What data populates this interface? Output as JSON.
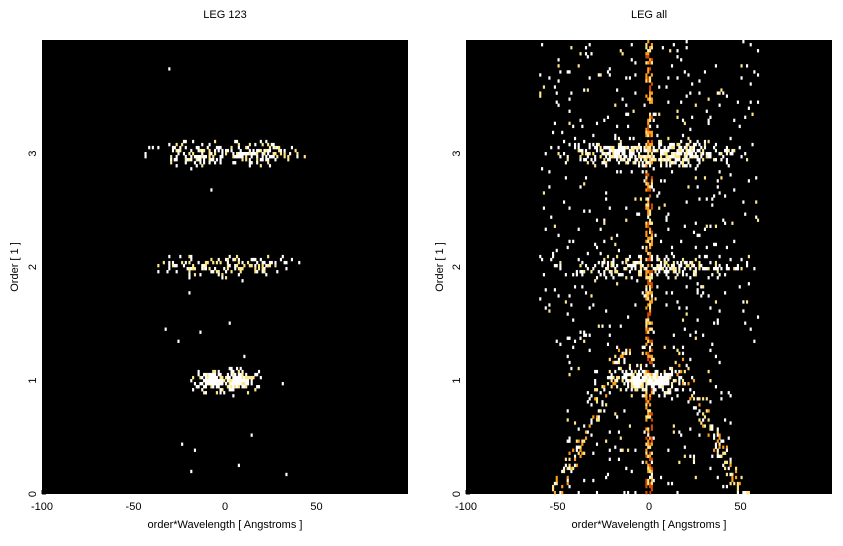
{
  "chart_data": [
    {
      "type": "heatmap",
      "title": "LEG 123",
      "xlabel": "order*Wavelength [ Angstroms ]",
      "ylabel": "Order [ 1 ]",
      "xlim": [
        -100,
        100
      ],
      "ylim": [
        0,
        4
      ],
      "xticks": [
        -100,
        -50,
        0,
        50
      ],
      "yticks": [
        0,
        1,
        2,
        3
      ],
      "background": "#000000",
      "colormap": [
        "#2a0000",
        "#7a1000",
        "#d04a00",
        "#ff9f1a",
        "#ffe88a",
        "#ffffff"
      ],
      "features": [
        {
          "order": 1.0,
          "center": -7,
          "width": 6,
          "intensity": 1.0
        },
        {
          "order": 1.0,
          "center": 7,
          "width": 6,
          "intensity": 1.0
        },
        {
          "order": 2.0,
          "center": -12,
          "width": 14,
          "intensity": 0.35
        },
        {
          "order": 2.0,
          "center": 16,
          "width": 14,
          "intensity": 0.35
        },
        {
          "order": 3.0,
          "center": -15,
          "width": 14,
          "intensity": 0.6
        },
        {
          "order": 3.0,
          "center": 15,
          "width": 14,
          "intensity": 0.6
        }
      ]
    },
    {
      "type": "heatmap",
      "title": "LEG all",
      "xlabel": "order*Wavelength [ Angstroms ]",
      "ylabel": "Order [ 1 ]",
      "xlim": [
        -100,
        100
      ],
      "ylim": [
        0,
        4
      ],
      "xticks": [
        -100,
        -50,
        0,
        50
      ],
      "yticks": [
        0,
        1,
        2,
        3
      ],
      "background": "#000000",
      "colormap": [
        "#2a0000",
        "#7a1000",
        "#d04a00",
        "#ff9f1a",
        "#ffe88a",
        "#ffffff"
      ],
      "features": [
        {
          "order": 1.0,
          "center": -7,
          "width": 6,
          "intensity": 1.0
        },
        {
          "order": 1.0,
          "center": 7,
          "width": 6,
          "intensity": 1.0
        },
        {
          "order": 2.0,
          "center": -12,
          "width": 20,
          "intensity": 0.4
        },
        {
          "order": 2.0,
          "center": 16,
          "width": 20,
          "intensity": 0.4
        },
        {
          "order": 3.0,
          "center": -15,
          "width": 18,
          "intensity": 0.65
        },
        {
          "order": 3.0,
          "center": 15,
          "width": 18,
          "intensity": 0.65
        },
        {
          "order": "all",
          "center": 0,
          "width": 2,
          "intensity": 0.7
        }
      ]
    }
  ]
}
